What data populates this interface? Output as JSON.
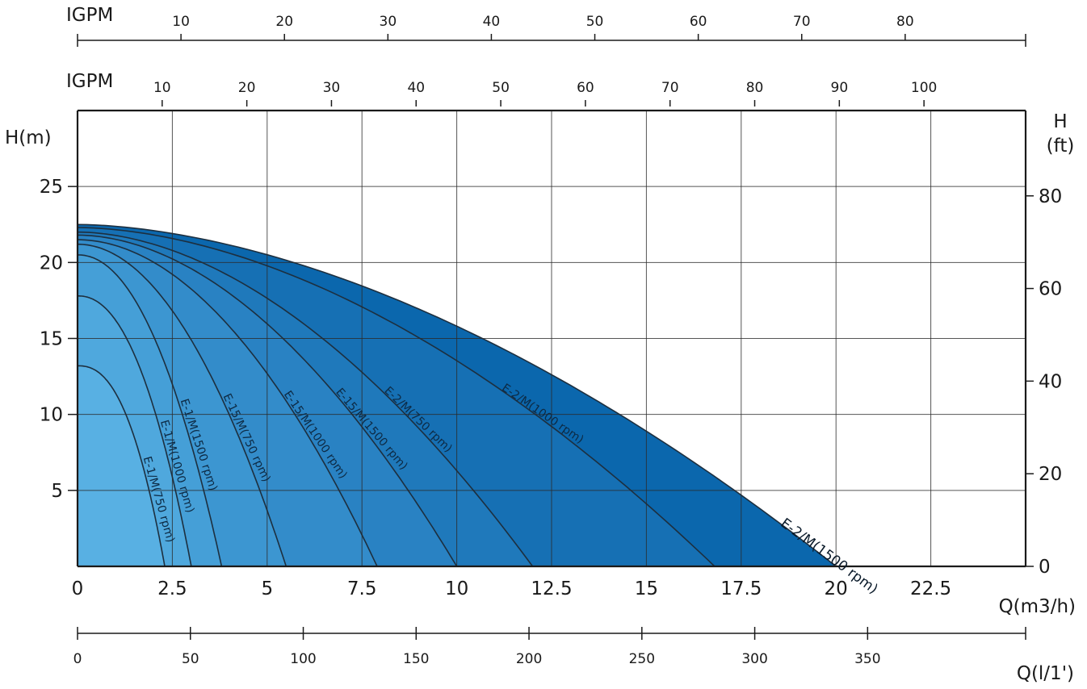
{
  "chart_data": {
    "type": "area",
    "xlabel": "Q(m3/h)",
    "ylabel": "H(m)",
    "ylabel_right": "H\n(ft)",
    "xlim": [
      0,
      25
    ],
    "ylim": [
      0,
      30
    ],
    "x_ticks": [
      0,
      2.5,
      5,
      7.5,
      10,
      12.5,
      15,
      17.5,
      20,
      22.5
    ],
    "x_tick_labels": [
      "0",
      "2.5",
      "5",
      "7.5",
      "10",
      "12.5",
      "15",
      "17.5",
      "20",
      "22.5"
    ],
    "y_ticks": [
      5,
      10,
      15,
      20,
      25
    ],
    "y_tick_labels": [
      "5",
      "10",
      "15",
      "20",
      "25"
    ],
    "right_axis": {
      "label": "H\n(ft)",
      "ticks": [
        0,
        20,
        40,
        60,
        80
      ],
      "tick_labels": [
        "0",
        "20",
        "40",
        "60",
        "80"
      ]
    },
    "top_axes": [
      {
        "label": "IGPM",
        "ticks": [
          10,
          20,
          30,
          40,
          50,
          60,
          70,
          80
        ],
        "tick_labels": [
          "10",
          "20",
          "30",
          "40",
          "50",
          "60",
          "70",
          "80"
        ],
        "m3h_per_unit": 0.2728
      },
      {
        "label": "IGPM",
        "ticks": [
          10,
          20,
          30,
          40,
          50,
          60,
          70,
          80,
          90,
          100
        ],
        "tick_labels": [
          "10",
          "20",
          "30",
          "40",
          "50",
          "60",
          "70",
          "80",
          "90",
          "100"
        ],
        "m3h_per_unit": 0.2232
      }
    ],
    "bottom_axis": {
      "label": "Q(l/1')",
      "ticks": [
        0,
        50,
        100,
        150,
        200,
        250,
        300,
        350
      ],
      "tick_labels": [
        "0",
        "50",
        "100",
        "150",
        "200",
        "250",
        "300",
        "350"
      ],
      "max_value": 420
    },
    "grid": true,
    "series": [
      {
        "name": "E-2/M(1500 rpm)",
        "shutoff_head": 22.5,
        "max_flow": 20.0,
        "shape": 1.75,
        "fill": "#0b67ad"
      },
      {
        "name": "E-2/M(1000 rpm)",
        "shutoff_head": 22.3,
        "max_flow": 16.8,
        "shape": 1.8,
        "fill": "#1670b4"
      },
      {
        "name": "E-2/M(750 rpm)",
        "shutoff_head": 22.0,
        "max_flow": 12.0,
        "shape": 1.85,
        "fill": "#1f79bb"
      },
      {
        "name": "E-15/M(1500 rpm)",
        "shutoff_head": 21.8,
        "max_flow": 10.0,
        "shape": 1.9,
        "fill": "#2982c3"
      },
      {
        "name": "E-15/M(1000 rpm)",
        "shutoff_head": 21.5,
        "max_flow": 7.9,
        "shape": 1.95,
        "fill": "#338cca"
      },
      {
        "name": "E-15/M(750 rpm)",
        "shutoff_head": 21.2,
        "max_flow": 5.5,
        "shape": 2.0,
        "fill": "#3c96d1"
      },
      {
        "name": "E-1/M(1500 rpm)",
        "shutoff_head": 20.5,
        "max_flow": 3.8,
        "shape": 2.1,
        "fill": "#459fd7"
      },
      {
        "name": "E-1/M(1000 rpm)",
        "shutoff_head": 17.8,
        "max_flow": 3.0,
        "shape": 2.2,
        "fill": "#4fa8dd"
      },
      {
        "name": "E-1/M(750 rpm)",
        "shutoff_head": 13.2,
        "max_flow": 2.3,
        "shape": 2.4,
        "fill": "#58b0e3"
      }
    ],
    "colors": {
      "grid": "#2b2b2b",
      "curve": "#1d2f3f",
      "axis": "#1a1a1a"
    }
  }
}
